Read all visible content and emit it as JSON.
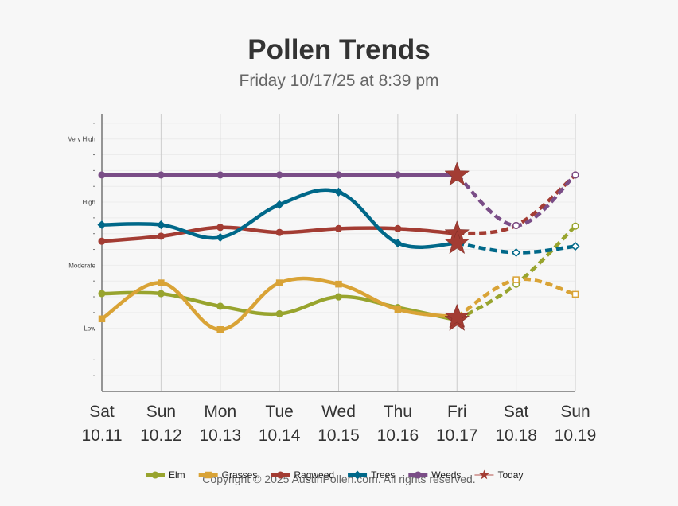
{
  "chart_data": {
    "type": "line",
    "title": "Pollen Trends",
    "subtitle": "Friday 10/17/25 at 8:39 pm",
    "x": [
      {
        "day": "Sat",
        "date": "10.11"
      },
      {
        "day": "Sun",
        "date": "10.12"
      },
      {
        "day": "Mon",
        "date": "10.13"
      },
      {
        "day": "Tue",
        "date": "10.14"
      },
      {
        "day": "Wed",
        "date": "10.15"
      },
      {
        "day": "Thu",
        "date": "10.16"
      },
      {
        "day": "Fri",
        "date": "10.17"
      },
      {
        "day": "Sat",
        "date": "10.18"
      },
      {
        "day": "Sun",
        "date": "10.19"
      }
    ],
    "y_levels": [
      "Low",
      "Moderate",
      "High",
      "Very High"
    ],
    "ylim": [
      0,
      4.4
    ],
    "forecast_start_index": 6,
    "today_index": 6,
    "grid": true,
    "legend_position": "bottom",
    "series": [
      {
        "name": "Elm",
        "color": "#98a42e",
        "marker": "circle",
        "values": [
          1.55,
          1.55,
          1.35,
          1.23,
          1.5,
          1.33,
          1.13,
          1.7,
          2.62
        ]
      },
      {
        "name": "Grasses",
        "color": "#d9a336",
        "marker": "square",
        "values": [
          1.15,
          1.72,
          0.98,
          1.72,
          1.7,
          1.3,
          1.18,
          1.77,
          1.54
        ]
      },
      {
        "name": "Ragweed",
        "color": "#a33c33",
        "marker": "circle",
        "values": [
          2.38,
          2.46,
          2.6,
          2.52,
          2.58,
          2.58,
          2.5,
          2.63,
          3.43
        ]
      },
      {
        "name": "Trees",
        "color": "#006889",
        "marker": "diamond",
        "values": [
          2.64,
          2.64,
          2.44,
          2.96,
          3.16,
          2.35,
          2.35,
          2.2,
          2.3
        ]
      },
      {
        "name": "Weeds",
        "color": "#7a4d87",
        "marker": "circle",
        "values": [
          3.43,
          3.43,
          3.43,
          3.43,
          3.43,
          3.43,
          3.43,
          2.63,
          3.43
        ]
      }
    ],
    "today_legend": "Today",
    "today_color": "#a33c33"
  },
  "footer": {
    "copyright": "Copyright © 2025 AustinPollen.com.  All rights reserved."
  }
}
